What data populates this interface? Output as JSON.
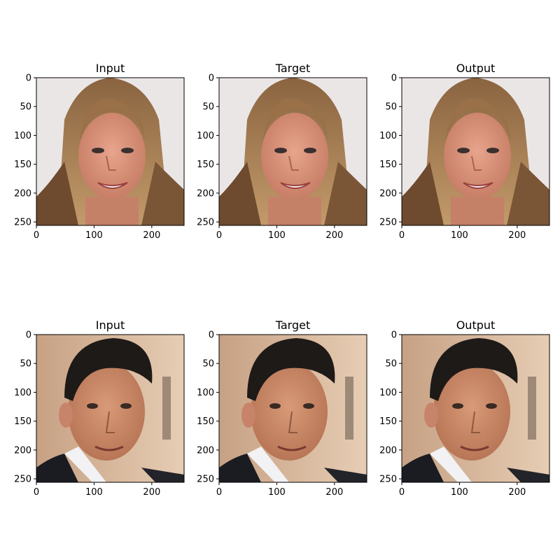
{
  "figure": {
    "rows": [
      {
        "panels": [
          {
            "title": "Input",
            "image": "woman-face-photo-original"
          },
          {
            "title": "Target",
            "image": "woman-face-photo-target"
          },
          {
            "title": "Output",
            "image": "woman-face-photo-generated"
          }
        ]
      },
      {
        "panels": [
          {
            "title": "Input",
            "image": "man-face-photo-original"
          },
          {
            "title": "Target",
            "image": "man-face-photo-target"
          },
          {
            "title": "Output",
            "image": "man-face-photo-generated"
          }
        ]
      }
    ],
    "x_ticks": [
      "0",
      "100",
      "200"
    ],
    "y_ticks": [
      "0",
      "50",
      "100",
      "150",
      "200",
      "250"
    ],
    "image_range": [
      0,
      256
    ]
  }
}
